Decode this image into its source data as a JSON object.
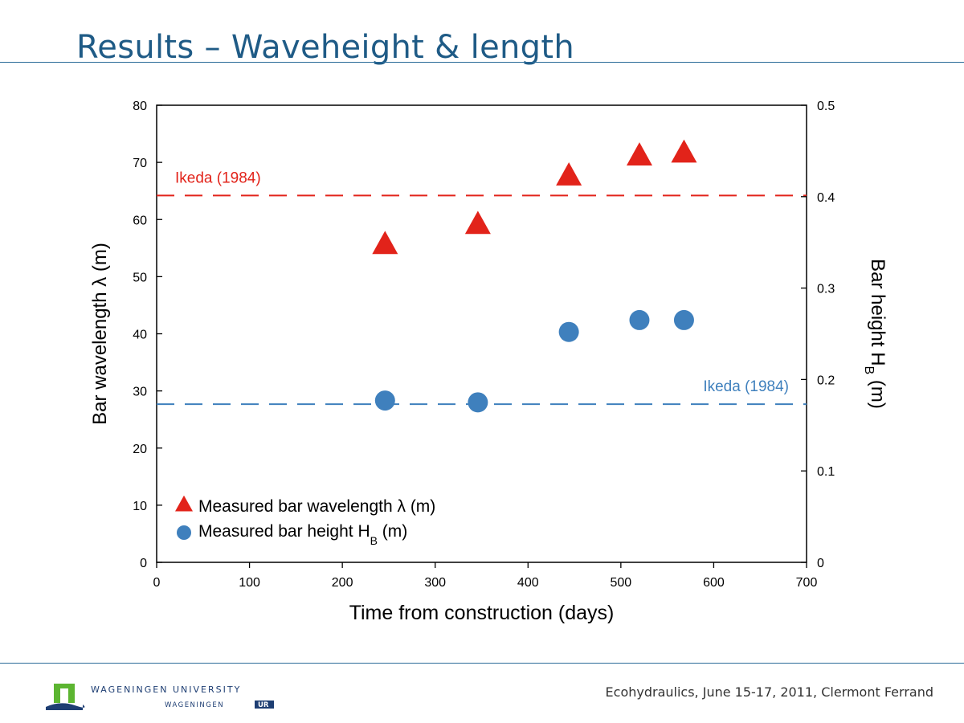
{
  "slide": {
    "title": "Results – Waveheight & length",
    "footer": "Ecohydraulics, June 15-17, 2011, Clermont Ferrand"
  },
  "logo": {
    "line1": "WAGENINGEN UNIVERSITY",
    "line2_left": "WAGENINGEN",
    "line2_box": "UR",
    "colors": {
      "green": "#5cb531",
      "navy": "#1e3e73"
    }
  },
  "chart_data": {
    "type": "scatter",
    "xlabel": "Time from construction (days)",
    "ylabel_left": "Bar wavelength λ (m)",
    "ylabel_right_main": "Bar height H",
    "ylabel_right_sub": "B",
    "ylabel_right_unit": "(m)",
    "xlim": [
      0,
      700
    ],
    "ylim_left": [
      0,
      80
    ],
    "ylim_right": [
      0,
      0.5
    ],
    "xticks": [
      0,
      100,
      200,
      300,
      400,
      500,
      600,
      700
    ],
    "yticks_left": [
      0,
      10,
      20,
      30,
      40,
      50,
      60,
      70,
      80
    ],
    "yticks_right": [
      0,
      0.1,
      0.2,
      0.3,
      0.4,
      0.5
    ],
    "grid": false,
    "legend_position": "bottom-left",
    "series": [
      {
        "name": "Measured bar wavelength λ (m)",
        "legend_main": "Measured bar wavelength λ (m)",
        "axis": "left",
        "marker": "triangle",
        "color": "#e2231a",
        "x": [
          246,
          346,
          444,
          520,
          568
        ],
        "y": [
          55.5,
          59,
          67.5,
          71,
          71.5
        ]
      },
      {
        "name": "Measured bar height HB (m)",
        "legend_main": "Measured bar height H",
        "legend_sub": "B",
        "legend_unit": "(m)",
        "axis": "right",
        "marker": "circle",
        "color": "#3f80bd",
        "x": [
          246,
          346,
          444,
          520,
          568
        ],
        "y": [
          0.177,
          0.175,
          0.252,
          0.265,
          0.265
        ]
      }
    ],
    "reference_lines": [
      {
        "label": "Ikeda (1984)",
        "axis": "left",
        "value": 64.2,
        "color": "#e2231a",
        "style": "dashed",
        "label_position": "left"
      },
      {
        "label": "Ikeda (1984)",
        "axis": "right",
        "value": 0.173,
        "color": "#3f80bd",
        "style": "dashed",
        "label_position": "right"
      }
    ]
  }
}
